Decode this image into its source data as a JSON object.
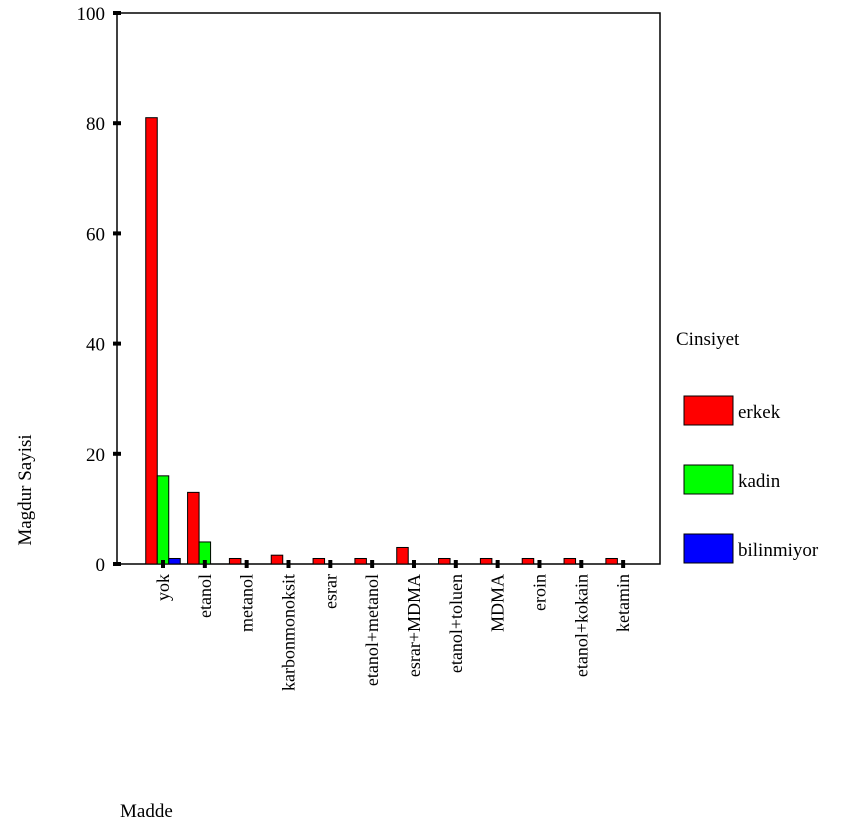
{
  "chart_data": {
    "type": "bar",
    "title": "",
    "xlabel": "Madde",
    "ylabel": "Magdur Sayisi",
    "ylim": [
      0,
      100
    ],
    "yticks": [
      0,
      20,
      40,
      60,
      80,
      100
    ],
    "grid": false,
    "legend_position": "right",
    "legend_title": "Cinsiyet",
    "categories": [
      "yok",
      "etanol",
      "metanol",
      "karbonmonoksit",
      "esrar",
      "etanol+metanol",
      "esrar+MDMA",
      "etanol+toluen",
      "MDMA",
      "eroin",
      "etanol+kokain",
      "ketamin"
    ],
    "series": [
      {
        "name": "erkek",
        "color": "#ff0000",
        "values": [
          81,
          13,
          1,
          1.6,
          1,
          1,
          3,
          1,
          1,
          1,
          1,
          1
        ]
      },
      {
        "name": "kadin",
        "color": "#00ff00",
        "values": [
          16,
          4,
          0,
          0,
          0,
          0,
          0,
          0,
          0,
          0,
          0,
          0
        ]
      },
      {
        "name": "bilinmiyor",
        "color": "#0000ff",
        "values": [
          1,
          0,
          0,
          0,
          0,
          0,
          0,
          0,
          0,
          0,
          0,
          0
        ]
      }
    ]
  }
}
